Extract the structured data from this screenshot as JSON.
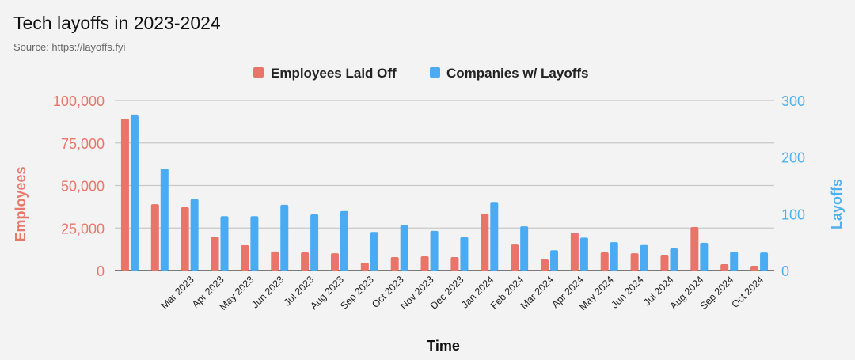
{
  "chart_data": {
    "type": "bar",
    "title": "Tech layoffs in 2023-2024",
    "subtitle": "Source: https://layoffs.fyi",
    "xlabel": "Time",
    "ylabel_left": "Employees",
    "ylabel_right": "Layoffs",
    "legend_position": "top",
    "grid": true,
    "categories": [
      "",
      "",
      "Mar 2023",
      "Apr 2023",
      "May 2023",
      "Jun 2023",
      "Jul 2023",
      "Aug 2023",
      "Sep 2023",
      "Oct 2023",
      "Nov 2023",
      "Dec 2023",
      "Jan 2024",
      "Feb 2024",
      "Mar 2024",
      "Apr 2024",
      "May 2024",
      "Jun 2024",
      "Jul 2024",
      "Aug 2024",
      "Sep 2024",
      "Oct 2024"
    ],
    "left_axis": {
      "ylim": [
        0,
        100000
      ],
      "ticks": [
        "0",
        "25,000",
        "50,000",
        "75,000",
        "100,000"
      ],
      "tick_values": [
        0,
        25000,
        50000,
        75000,
        100000
      ],
      "color": "#e8786a"
    },
    "right_axis": {
      "ylim": [
        0,
        300
      ],
      "ticks": [
        "0",
        "100",
        "200",
        "300"
      ],
      "tick_values": [
        0,
        100,
        200,
        300
      ],
      "color": "#4fb0ee"
    },
    "series": [
      {
        "name": "Employees Laid Off",
        "axis": "left",
        "color": "#e8746a",
        "values": [
          89300,
          39000,
          37200,
          20000,
          14900,
          11200,
          10700,
          10200,
          4600,
          7900,
          8400,
          7900,
          33500,
          15300,
          7000,
          22300,
          10700,
          10200,
          9300,
          25600,
          3700,
          2800
        ]
      },
      {
        "name": "Companies w/ Layoffs",
        "axis": "right",
        "color": "#4aabf2",
        "values": [
          275,
          180,
          126,
          96,
          96,
          116,
          99,
          105,
          68,
          80,
          70,
          59,
          121,
          78,
          36,
          58,
          50,
          45,
          39,
          49,
          33,
          32
        ]
      }
    ]
  }
}
